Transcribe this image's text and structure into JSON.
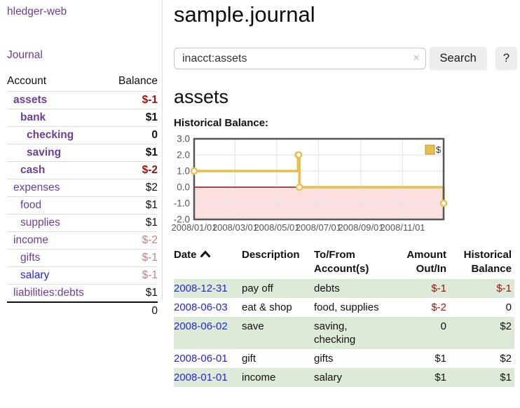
{
  "app": {
    "brand": "hledger-web",
    "nav_journal": "Journal"
  },
  "sidebar": {
    "header": {
      "account": "Account",
      "balance": "Balance"
    },
    "accounts": [
      {
        "name": "assets",
        "level": 1,
        "bold": true,
        "balance": "$-1"
      },
      {
        "name": "bank",
        "level": 2,
        "bold": true,
        "balance": "$1"
      },
      {
        "name": "checking",
        "level": 3,
        "bold": true,
        "balance": "0"
      },
      {
        "name": "saving",
        "level": 3,
        "bold": true,
        "balance": "$1"
      },
      {
        "name": "cash",
        "level": 2,
        "bold": true,
        "balance": "$-2"
      },
      {
        "name": "expenses",
        "level": 1,
        "bold": false,
        "balance": "$2"
      },
      {
        "name": "food",
        "level": 2,
        "bold": false,
        "balance": "$1"
      },
      {
        "name": "supplies",
        "level": 2,
        "bold": false,
        "balance": "$1"
      },
      {
        "name": "income",
        "level": 1,
        "bold": false,
        "balance": "$-2"
      },
      {
        "name": "gifts",
        "level": 2,
        "bold": false,
        "balance": "$-1"
      },
      {
        "name": "salary",
        "level": 2,
        "bold": false,
        "balance": "$-1",
        "link_color": "blue"
      },
      {
        "name": "liabilities:debts",
        "level": 1,
        "bold": false,
        "balance": "$1"
      }
    ],
    "total": "0"
  },
  "header": {
    "title": "sample.journal"
  },
  "search": {
    "value": "inacct:assets",
    "clear_icon": "×",
    "button": "Search",
    "help_button": "?"
  },
  "account_page": {
    "heading": "assets",
    "chart_label": "Historical Balance:"
  },
  "chart_data": {
    "type": "line",
    "step": true,
    "title": "Historical Balance:",
    "legend": "$",
    "legend_position": "top-right",
    "series": [
      {
        "name": "$",
        "points": [
          [
            "2008-01-01",
            1
          ],
          [
            "2008-06-01",
            2
          ],
          [
            "2008-06-02",
            2
          ],
          [
            "2008-06-03",
            0
          ],
          [
            "2008-12-31",
            -1
          ]
        ]
      }
    ],
    "xlim": [
      "2008-01-01",
      "2008-12-31"
    ],
    "ylim": [
      -2,
      3
    ],
    "x_ticks": [
      "2008/01/01",
      "2008/03/01",
      "2008/05/01",
      "2008/07/01",
      "2008/09/01",
      "2008/11/01"
    ],
    "y_ticks": [
      "3.0",
      "2.0",
      "1.0",
      "0.0",
      "-1.0",
      "-2.0"
    ],
    "grid": true,
    "colors": {
      "line": "#e7c04c",
      "marker_fill": "#ffffff",
      "negative_fill": "#fbd7d7",
      "zero_line": "#8c1515",
      "grid": "#e4e4e4",
      "border": "#565656",
      "tick_text": "#555555",
      "legend_box_border": "#bb9830"
    }
  },
  "register": {
    "columns": [
      {
        "line1": "Date",
        "line2": "",
        "align": "left",
        "sort": "asc"
      },
      {
        "line1": "Description",
        "line2": "",
        "align": "left"
      },
      {
        "line1": "To/From",
        "line2": "Account(s)",
        "align": "left"
      },
      {
        "line1": "Amount",
        "line2": "Out/In",
        "align": "right"
      },
      {
        "line1": "Historical",
        "line2": "Balance",
        "align": "right"
      }
    ],
    "rows": [
      {
        "date": "2008-12-31",
        "description": "pay off",
        "accounts": "debts",
        "amount": "$-1",
        "balance": "$-1"
      },
      {
        "date": "2008-06-03",
        "description": "eat & shop",
        "accounts": "food, supplies",
        "amount": "$-2",
        "balance": "0"
      },
      {
        "date": "2008-06-02",
        "description": "save",
        "accounts": "saving, checking",
        "amount": "0",
        "balance": "$2"
      },
      {
        "date": "2008-06-01",
        "description": "gift",
        "accounts": "gifts",
        "amount": "$1",
        "balance": "$2"
      },
      {
        "date": "2008-01-01",
        "description": "income",
        "accounts": "salary",
        "amount": "$1",
        "balance": "$1"
      }
    ]
  }
}
